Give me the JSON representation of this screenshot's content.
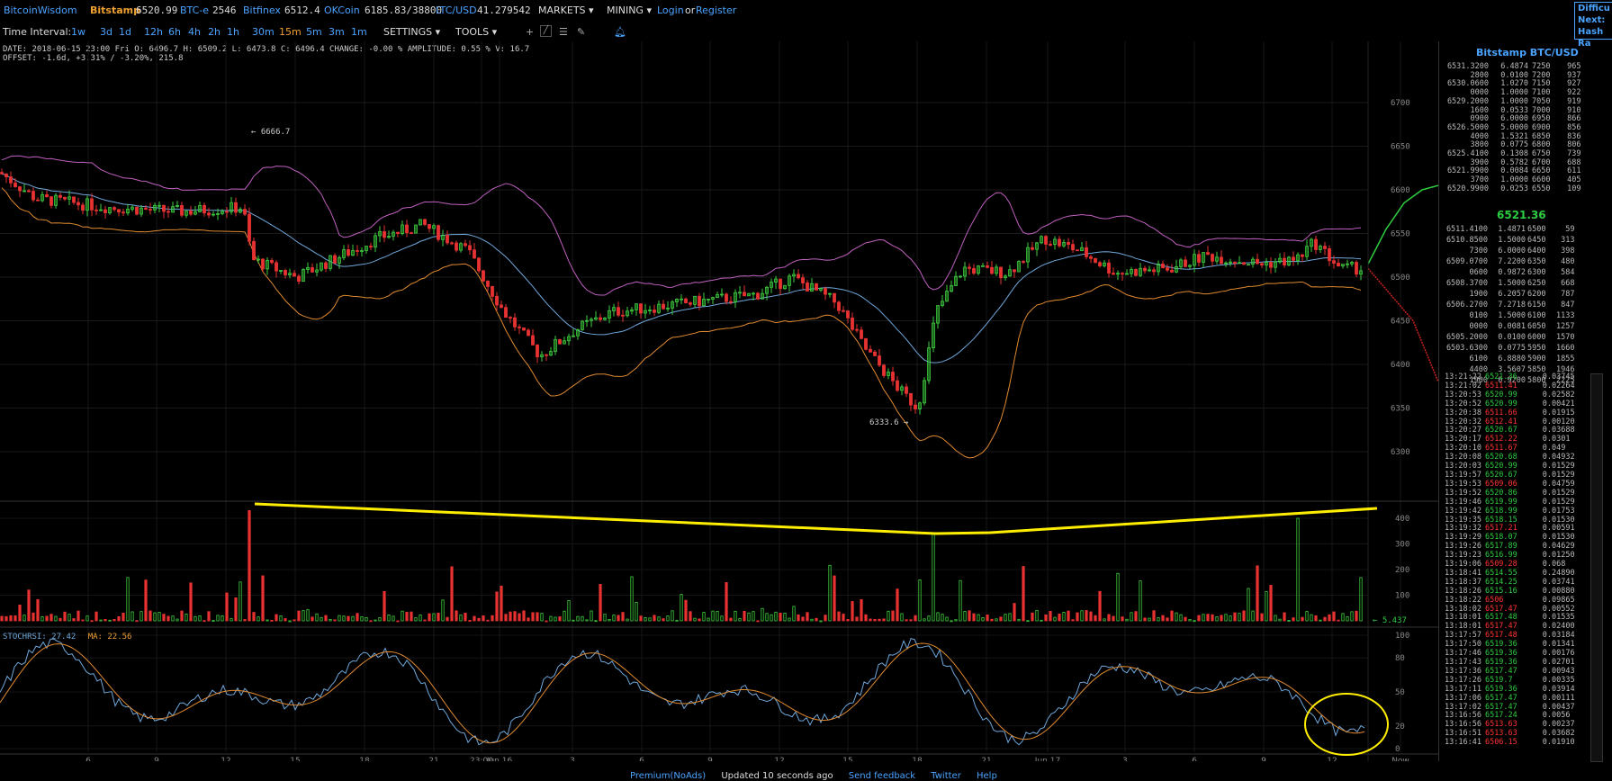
{
  "topbar": {
    "brand": "BitcoinWisdom",
    "markets": [
      {
        "name": "Bitstamp",
        "price": "6520.99"
      },
      {
        "name": "BTC-e",
        "price": "2546"
      },
      {
        "name": "Bitfinex",
        "price": "6512.4"
      },
      {
        "name": "OKCoin",
        "price": "6185.83/38800"
      },
      {
        "name": "LTC/USD",
        "price": "41.279542"
      }
    ],
    "markets_menu": "MARKETS",
    "mining_menu": "MINING",
    "login": "Login",
    "or": "or",
    "register": "Register"
  },
  "difficulty_box": {
    "line1": "Difficu",
    "line2": "Next:",
    "line3": "Hash Ra"
  },
  "toolbar": {
    "time_interval_label": "Time Interval:",
    "intervals": [
      "1w",
      "3d",
      "1d",
      "12h",
      "6h",
      "4h",
      "2h",
      "1h",
      "30m",
      "15m",
      "5m",
      "3m",
      "1m"
    ],
    "active_interval": "15m",
    "settings": "SETTINGS",
    "tools": "TOOLS"
  },
  "info": {
    "line1": "DATE: 2018-06-15 23:00 Fri   O: 6496.7   H: 6509.2   L: 6473.8   C: 6496.4   CHANGE: -0.00 %   AMPLITUDE: 0.55 %   V: 16.7",
    "line2": "OFFSET: -1.6d, +3.31% / -3.20%, 215.8"
  },
  "stoch": {
    "label": "STOCHRSI: 27.42",
    "ma": "MA: 22.56"
  },
  "chart_data": [
    {
      "type": "candlestick",
      "title": "",
      "y_ticks": [
        6300,
        6350,
        6400,
        6450,
        6500,
        6550,
        6600,
        6650,
        6700
      ],
      "x_ticks": [
        "6",
        "9",
        "12",
        "15",
        "18",
        "21",
        "23:00",
        "Jun 16",
        "3",
        "6",
        "9",
        "12",
        "15",
        "18",
        "21",
        "Jun 17",
        "3",
        "6",
        "9",
        "12",
        "Now"
      ],
      "annotations": [
        "← 6666.7",
        "6333.6 →"
      ],
      "grid": true
    },
    {
      "type": "bar",
      "title": "",
      "y_ticks": [
        100,
        200,
        300,
        400
      ],
      "annotations": [
        "5.437"
      ]
    },
    {
      "type": "line",
      "title": "",
      "series": [
        {
          "name": "STOCHRSI"
        },
        {
          "name": "MA"
        }
      ],
      "y_ticks": [
        0,
        20,
        50,
        80,
        100
      ]
    }
  ],
  "sidepanel": {
    "title": "Bitstamp BTC/USD",
    "asks": [
      [
        "6531.3200",
        "6.4874",
        "7250",
        "965"
      ],
      [
        "2800",
        "0.0100",
        "7200",
        "937"
      ],
      [
        "6530.0600",
        "1.0270",
        "7150",
        "927"
      ],
      [
        "0000",
        "1.0000",
        "7100",
        "922"
      ],
      [
        "6529.2000",
        "1.0000",
        "7050",
        "919"
      ],
      [
        "1600",
        "0.0533",
        "7000",
        "910"
      ],
      [
        "0900",
        "6.0000",
        "6950",
        "866"
      ],
      [
        "6526.5000",
        "5.0000",
        "6900",
        "856"
      ],
      [
        "4000",
        "1.5321",
        "6850",
        "836"
      ],
      [
        "3800",
        "0.0775",
        "6800",
        "806"
      ],
      [
        "6525.4100",
        "0.1308",
        "6750",
        "739"
      ],
      [
        "3900",
        "0.5782",
        "6700",
        "688"
      ],
      [
        "6521.9900",
        "0.0084",
        "6650",
        "611"
      ],
      [
        "3700",
        "1.0000",
        "6600",
        "405"
      ],
      [
        "6520.9900",
        "0.0253",
        "6550",
        "109"
      ]
    ],
    "last_price": "6521.36",
    "bids": [
      [
        "6511.4100",
        "1.4871",
        "6500",
        "59"
      ],
      [
        "6510.8500",
        "1.5000",
        "6450",
        "313"
      ],
      [
        "7300",
        "6.0000",
        "6400",
        "398"
      ],
      [
        "6509.0700",
        "7.2200",
        "6350",
        "480"
      ],
      [
        "0600",
        "0.9872",
        "6300",
        "584"
      ],
      [
        "6508.3700",
        "1.5000",
        "6250",
        "668"
      ],
      [
        "1900",
        "6.2057",
        "6200",
        "787"
      ],
      [
        "6506.2700",
        "7.2718",
        "6150",
        "847"
      ],
      [
        "0100",
        "1.5000",
        "6100",
        "1133"
      ],
      [
        "0000",
        "0.0081",
        "6050",
        "1257"
      ],
      [
        "6505.2000",
        "0.0100",
        "6000",
        "1570"
      ],
      [
        "6503.6300",
        "0.0775",
        "5950",
        "1660"
      ],
      [
        "6100",
        "6.8880",
        "5900",
        "1855"
      ],
      [
        "4400",
        "3.5607",
        "5850",
        "1946"
      ],
      [
        "1900",
        "0.9200",
        "5800",
        "2225"
      ]
    ],
    "trades": [
      [
        "13:21:22",
        "6521.36",
        "0.03745",
        "g"
      ],
      [
        "13:21:02",
        "6511.41",
        "0.02264",
        "r"
      ],
      [
        "13:20:53",
        "6520.99",
        "0.02582",
        "g"
      ],
      [
        "13:20:52",
        "6520.99",
        "0.00421",
        "g"
      ],
      [
        "13:20:38",
        "6511.66",
        "0.01915",
        "r"
      ],
      [
        "13:20:32",
        "6512.41",
        "0.00120",
        "r"
      ],
      [
        "13:20:27",
        "6520.67",
        "0.03688",
        "g"
      ],
      [
        "13:20:17",
        "6512.22",
        "0.0301",
        "r"
      ],
      [
        "13:20:10",
        "6511.67",
        "0.049",
        "r"
      ],
      [
        "13:20:08",
        "6520.68",
        "0.04932",
        "g"
      ],
      [
        "13:20:03",
        "6520.99",
        "0.01529",
        "g"
      ],
      [
        "13:19:57",
        "6520.67",
        "0.01529",
        "g"
      ],
      [
        "13:19:53",
        "6509.06",
        "0.04759",
        "r"
      ],
      [
        "13:19:52",
        "6520.86",
        "0.01529",
        "g"
      ],
      [
        "13:19:46",
        "6519.99",
        "0.01529",
        "g"
      ],
      [
        "13:19:42",
        "6518.99",
        "0.01753",
        "g"
      ],
      [
        "13:19:35",
        "6518.15",
        "0.01530",
        "g"
      ],
      [
        "13:19:32",
        "6517.21",
        "0.00591",
        "r"
      ],
      [
        "13:19:29",
        "6518.07",
        "0.01530",
        "g"
      ],
      [
        "13:19:26",
        "6517.89",
        "0.04629",
        "g"
      ],
      [
        "13:19:23",
        "6516.99",
        "0.01250",
        "g"
      ],
      [
        "13:19:06",
        "6509.28",
        "0.068",
        "r"
      ],
      [
        "13:18:41",
        "6514.55",
        "0.24890",
        "g"
      ],
      [
        "13:18:37",
        "6514.25",
        "0.03741",
        "g"
      ],
      [
        "13:18:26",
        "6515.16",
        "0.00880",
        "g"
      ],
      [
        "13:18:22",
        "6506",
        "0.09865",
        "r"
      ],
      [
        "13:18:02",
        "6517.47",
        "0.00552",
        "r"
      ],
      [
        "13:18:01",
        "6517.48",
        "0.01535",
        "g"
      ],
      [
        "13:18:01",
        "6517.47",
        "0.02400",
        "r"
      ],
      [
        "13:17:57",
        "6517.48",
        "0.03184",
        "r"
      ],
      [
        "13:17:50",
        "6519.36",
        "0.01341",
        "g"
      ],
      [
        "13:17:46",
        "6519.36",
        "0.00176",
        "g"
      ],
      [
        "13:17:43",
        "6519.36",
        "0.02701",
        "g"
      ],
      [
        "13:17:36",
        "6517.47",
        "0.00943",
        "g"
      ],
      [
        "13:17:26",
        "6519.7",
        "0.00335",
        "g"
      ],
      [
        "13:17:11",
        "6519.36",
        "0.03914",
        "g"
      ],
      [
        "13:17:06",
        "6517.47",
        "0.00111",
        "g"
      ],
      [
        "13:17:02",
        "6517.47",
        "0.00437",
        "g"
      ],
      [
        "13:16:56",
        "6517.24",
        "0.0056",
        "g"
      ],
      [
        "13:16:56",
        "6513.63",
        "0.00237",
        "r"
      ],
      [
        "13:16:51",
        "6513.63",
        "0.03682",
        "r"
      ],
      [
        "13:16:41",
        "6506.15",
        "0.01910",
        "r"
      ]
    ]
  },
  "footer": {
    "premium": "Premium(NoAds)",
    "updated": "Updated 10 seconds ago",
    "feedback": "Send feedback",
    "twitter": "Twitter",
    "help": "Help"
  }
}
